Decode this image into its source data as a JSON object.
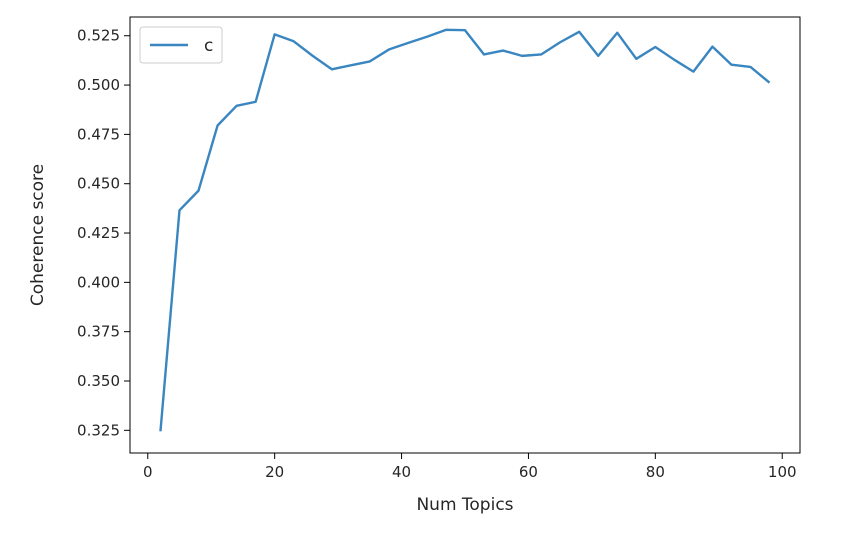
{
  "chart_data": {
    "type": "line",
    "title": "",
    "xlabel": "Num Topics",
    "ylabel": "Coherence score",
    "xlim": [
      -2.8,
      102.8
    ],
    "ylim": [
      0.3135,
      0.5345
    ],
    "xticks": [
      0,
      20,
      40,
      60,
      80,
      100
    ],
    "xtick_labels": [
      "0",
      "20",
      "40",
      "60",
      "80",
      "100"
    ],
    "yticks": [
      0.325,
      0.35,
      0.375,
      0.4,
      0.425,
      0.45,
      0.475,
      0.5,
      0.525
    ],
    "ytick_labels": [
      "0.325",
      "0.350",
      "0.375",
      "0.400",
      "0.425",
      "0.450",
      "0.475",
      "0.500",
      "0.525"
    ],
    "grid": false,
    "legend_position": "top-left",
    "series": [
      {
        "name": "c",
        "color": "#3a86c0",
        "x": [
          2,
          5,
          8,
          11,
          14,
          17,
          20,
          23,
          26,
          29,
          32,
          35,
          38,
          41,
          44,
          47,
          50,
          53,
          56,
          59,
          62,
          65,
          68,
          71,
          74,
          77,
          80,
          83,
          86,
          89,
          92,
          95,
          98
        ],
        "y": [
          0.3245,
          0.4365,
          0.4465,
          0.4795,
          0.4895,
          0.4915,
          0.5257,
          0.5222,
          0.5148,
          0.508,
          0.51,
          0.512,
          0.518,
          0.5213,
          0.5245,
          0.528,
          0.5278,
          0.5155,
          0.5175,
          0.5148,
          0.5155,
          0.5217,
          0.527,
          0.5148,
          0.5265,
          0.5133,
          0.5193,
          0.5128,
          0.5068,
          0.5195,
          0.5103,
          0.5092,
          0.5012
        ]
      }
    ]
  }
}
